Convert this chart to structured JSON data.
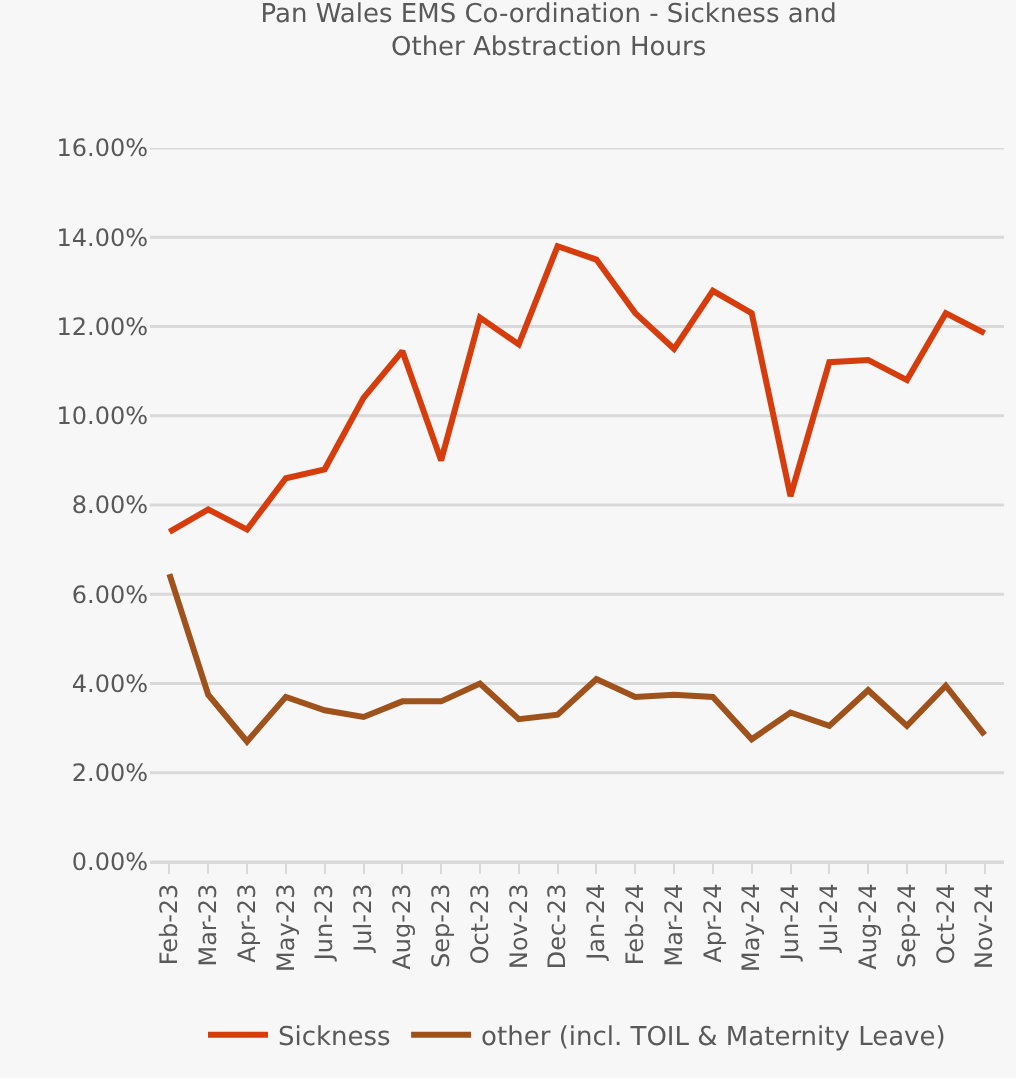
{
  "chart_data": {
    "type": "line",
    "title": "Pan Wales EMS Co-ordination - Sickness and Other Abstraction Hours",
    "categories": [
      "Feb-23",
      "Mar-23",
      "Apr-23",
      "May-23",
      "Jun-23",
      "Jul-23",
      "Aug-23",
      "Sep-23",
      "Oct-23",
      "Nov-23",
      "Dec-23",
      "Jan-24",
      "Feb-24",
      "Mar-24",
      "Apr-24",
      "May-24",
      "Jun-24",
      "Jul-24",
      "Aug-24",
      "Sep-24",
      "Oct-24",
      "Nov-24"
    ],
    "series": [
      {
        "name": "Sickness",
        "color": "#d63c0c",
        "values": [
          7.4,
          7.9,
          7.45,
          8.6,
          8.8,
          10.4,
          11.45,
          9.0,
          12.2,
          11.6,
          13.8,
          13.5,
          12.3,
          11.5,
          12.8,
          12.3,
          8.2,
          11.2,
          11.25,
          10.8,
          12.3,
          11.85
        ]
      },
      {
        "name": "other (incl. TOIL & Maternity Leave)",
        "color": "#a0521c",
        "values": [
          6.45,
          3.75,
          2.7,
          3.7,
          3.4,
          3.25,
          3.6,
          3.6,
          4.0,
          3.2,
          3.3,
          4.1,
          3.7,
          3.75,
          3.7,
          2.75,
          3.35,
          3.05,
          3.85,
          3.05,
          3.95,
          2.85
        ]
      }
    ],
    "ylim": [
      0,
      16
    ],
    "yticks": [
      {
        "value": 0,
        "label": "0.00%"
      },
      {
        "value": 2,
        "label": "2.00%"
      },
      {
        "value": 4,
        "label": "4.00%"
      },
      {
        "value": 6,
        "label": "6.00%"
      },
      {
        "value": 8,
        "label": "8.00%"
      },
      {
        "value": 10,
        "label": "10.00%"
      },
      {
        "value": 12,
        "label": "12.00%"
      },
      {
        "value": 14,
        "label": "14.00%"
      },
      {
        "value": 16,
        "label": "16.00%"
      }
    ],
    "grid": "y",
    "legend": "bottom",
    "marker": "none",
    "line_style": "solid"
  }
}
